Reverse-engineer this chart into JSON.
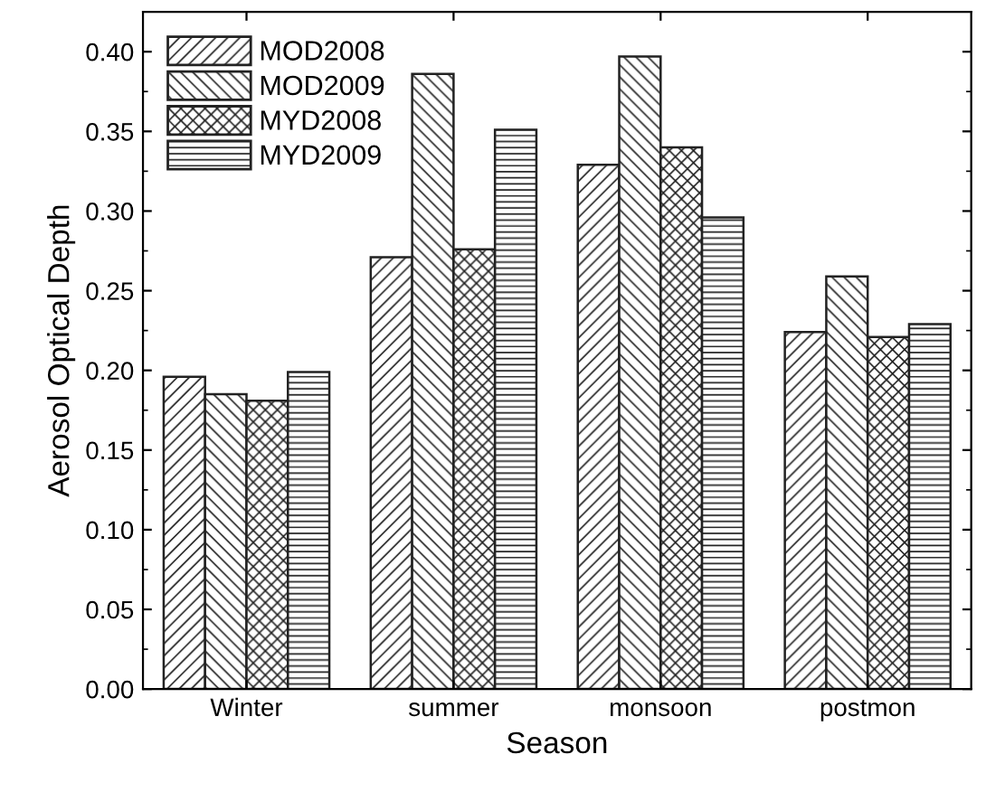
{
  "chart_data": {
    "type": "bar",
    "xlabel": "Season",
    "ylabel": "Aerosol Optical Depth",
    "categories": [
      "Winter",
      "summer",
      "monsoon",
      "postmon"
    ],
    "series": [
      {
        "name": "MOD2008",
        "color": "#222222",
        "values": [
          0.196,
          0.271,
          0.329,
          0.224
        ]
      },
      {
        "name": "MOD2009",
        "color": "#222222",
        "values": [
          0.185,
          0.386,
          0.397,
          0.259
        ]
      },
      {
        "name": "MYD2008",
        "color": "#222222",
        "values": [
          0.181,
          0.276,
          0.34,
          0.221
        ]
      },
      {
        "name": "MYD2009",
        "color": "#222222",
        "values": [
          0.199,
          0.351,
          0.296,
          0.229
        ]
      }
    ],
    "ylim": [
      0,
      0.425
    ],
    "yticks": [
      {
        "value": 0,
        "label": "0.00"
      },
      0.05,
      {
        "value": 0.1,
        "label": "0.10"
      },
      0.15,
      {
        "value": 0.2,
        "label": "0.20"
      },
      0.25,
      {
        "value": 0.3,
        "label": "0.30"
      },
      0.35,
      {
        "value": 0.4,
        "label": "0.40"
      }
    ],
    "grid": false,
    "legend": "top left"
  }
}
